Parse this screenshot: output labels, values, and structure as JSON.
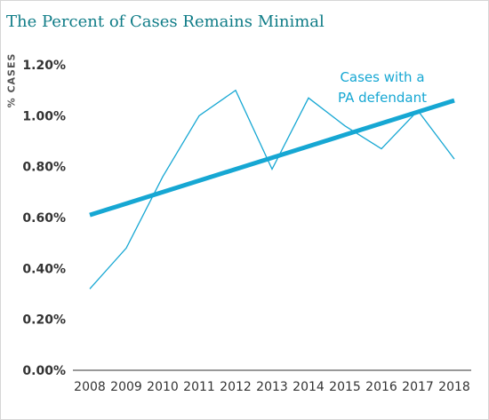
{
  "title": "The Percent of Cases Remains Minimal",
  "colors": {
    "title": "#0f7c87",
    "series": "#16a7d3",
    "axis": "#333333"
  },
  "chart_data": {
    "type": "line",
    "title": "The Percent of Cases Remains Minimal",
    "xlabel": "",
    "ylabel": "% CASES",
    "x": [
      "2008",
      "2009",
      "2010",
      "2011",
      "2012",
      "2013",
      "2014",
      "2015",
      "2016",
      "2017",
      "2018"
    ],
    "ylim": [
      0,
      1.2
    ],
    "yticks": [
      "0.00%",
      "0.20%",
      "0.40%",
      "0.60%",
      "0.80%",
      "1.00%",
      "1.20%"
    ],
    "series": [
      {
        "name": "Cases with a PA defendant",
        "values": [
          0.32,
          0.48,
          0.76,
          1.0,
          1.1,
          0.79,
          1.07,
          0.96,
          0.87,
          1.02,
          0.83
        ],
        "trend": [
          0.61,
          1.06
        ]
      }
    ],
    "annotation": [
      "Cases with a",
      "PA defendant"
    ],
    "grid": false
  }
}
